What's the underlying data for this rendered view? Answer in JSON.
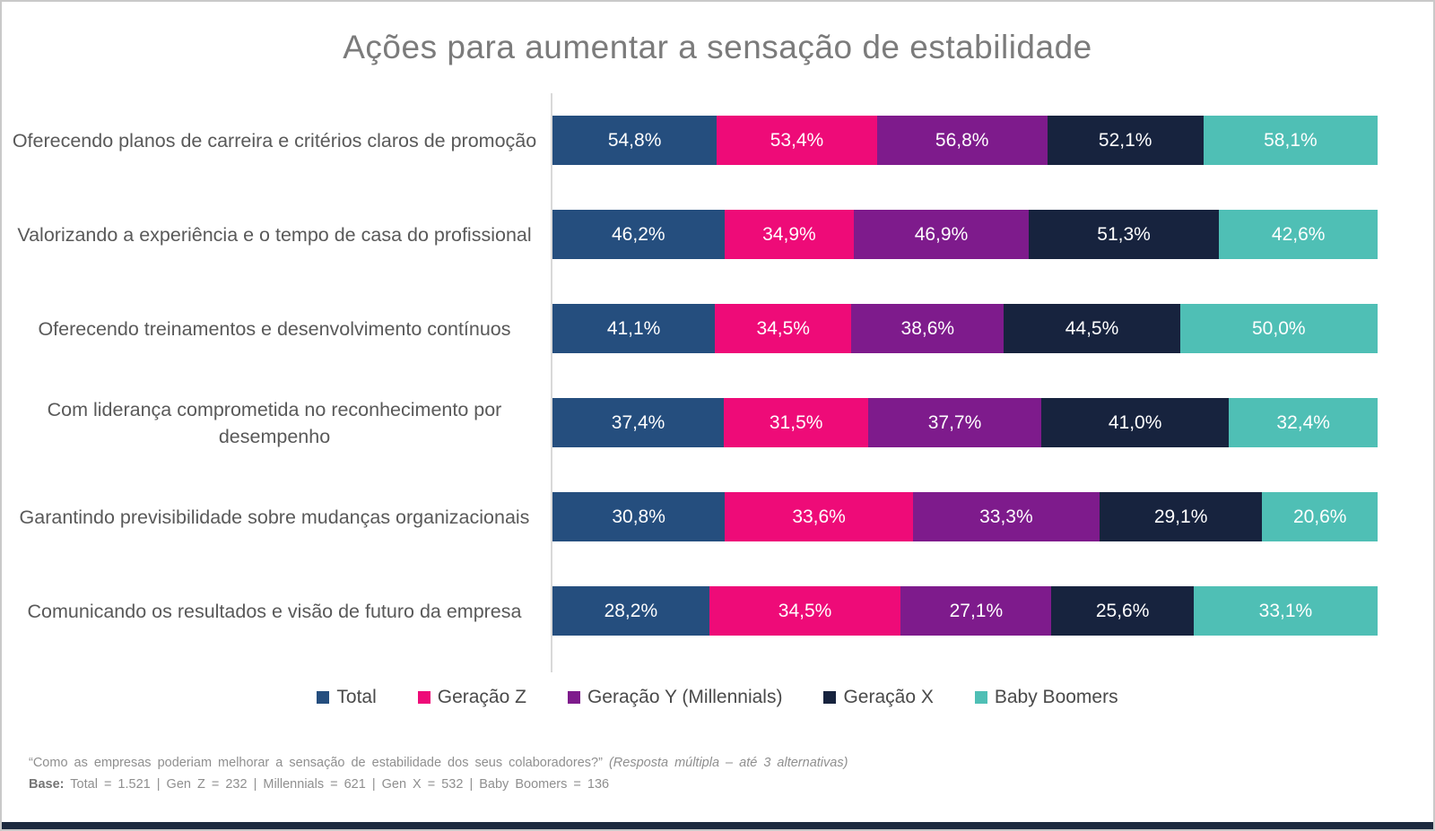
{
  "page": {
    "footnote_question": "“Como as empresas poderiam melhorar a sensação de estabilidade dos seus colaboradores?”",
    "footnote_note": "(Resposta múltipla – até 3 alternativas)",
    "base_label": "Base:",
    "base_text": "Total = 1.521 | Gen Z = 232 | Millennials = 621 | Gen X = 532 | Baby Boomers = 136"
  },
  "colors": {
    "title_text": "#7b7b7b",
    "category_text": "#595959",
    "value_text": "#ffffff",
    "axis_line": "#d9d9d9",
    "bottom_strip": "#1d2a3f",
    "series_total": "#254e7e",
    "series_gen_z": "#ee0b78",
    "series_gen_y": "#7e1b8c",
    "series_gen_x": "#17233e",
    "series_baby_boomers": "#4fbfb5"
  },
  "chart_data": {
    "type": "bar",
    "subtype": "horizontal-proportional-stacked",
    "title": "Ações para aumentar a sensação de estabilidade",
    "legend_position": "bottom",
    "grid": false,
    "value_format": "percent-comma-decimal",
    "categories": [
      "Oferecendo planos de carreira e critérios claros de promoção",
      "Valorizando a experiência e o tempo de casa do profissional",
      "Oferecendo treinamentos e desenvolvimento contínuos",
      "Com liderança comprometida no reconhecimento por desempenho",
      "Garantindo previsibilidade sobre mudanças organizacionais",
      "Comunicando os resultados e visão de futuro da empresa"
    ],
    "series": [
      {
        "name": "Total",
        "color": "#254e7e",
        "values": [
          54.8,
          46.2,
          41.1,
          37.4,
          30.8,
          28.2
        ]
      },
      {
        "name": "Geração Z",
        "color": "#ee0b78",
        "values": [
          53.4,
          34.9,
          34.5,
          31.5,
          33.6,
          34.5
        ]
      },
      {
        "name": "Geração Y (Millennials)",
        "color": "#7e1b8c",
        "values": [
          56.8,
          46.9,
          38.6,
          37.7,
          33.3,
          27.1
        ]
      },
      {
        "name": "Geração X",
        "color": "#17233e",
        "values": [
          52.1,
          51.3,
          44.5,
          41.0,
          29.1,
          25.6
        ]
      },
      {
        "name": "Baby Boomers",
        "color": "#4fbfb5",
        "values": [
          58.1,
          42.6,
          50.0,
          32.4,
          20.6,
          33.1
        ]
      }
    ]
  }
}
